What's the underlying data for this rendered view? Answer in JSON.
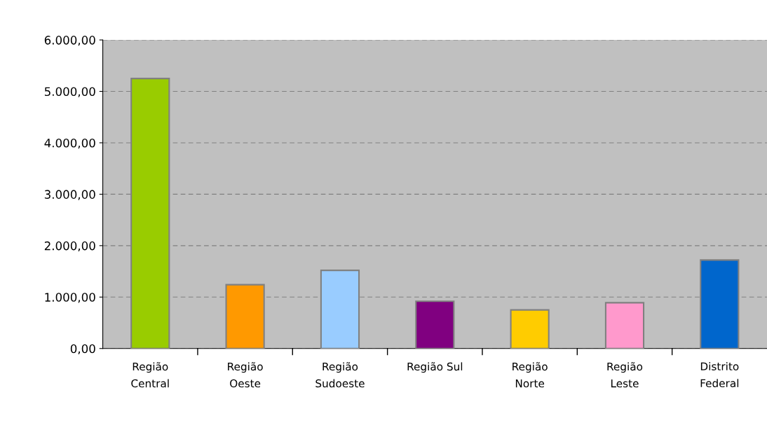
{
  "chart_data": {
    "type": "bar",
    "categories": [
      "Região Central",
      "Região Oeste",
      "Região Sudoeste",
      "Região Sul",
      "Região Norte",
      "Região Leste",
      "Distrito Federal"
    ],
    "values": [
      5250,
      1240,
      1520,
      920,
      750,
      890,
      1720
    ],
    "colors": [
      "#99cc00",
      "#ff9900",
      "#99ccff",
      "#800080",
      "#ffcc00",
      "#ff99cc",
      "#0066cc"
    ],
    "ylim": [
      0,
      6000
    ],
    "yticks": [
      {
        "value": 0,
        "label": "0,00"
      },
      {
        "value": 1000,
        "label": "1.000,00"
      },
      {
        "value": 2000,
        "label": "2.000,00"
      },
      {
        "value": 3000,
        "label": "3.000,00"
      },
      {
        "value": 4000,
        "label": "4.000,00"
      },
      {
        "value": 5000,
        "label": "5.000,00"
      },
      {
        "value": 6000,
        "label": "6.000,00"
      }
    ],
    "grid": "y",
    "legend": false
  }
}
